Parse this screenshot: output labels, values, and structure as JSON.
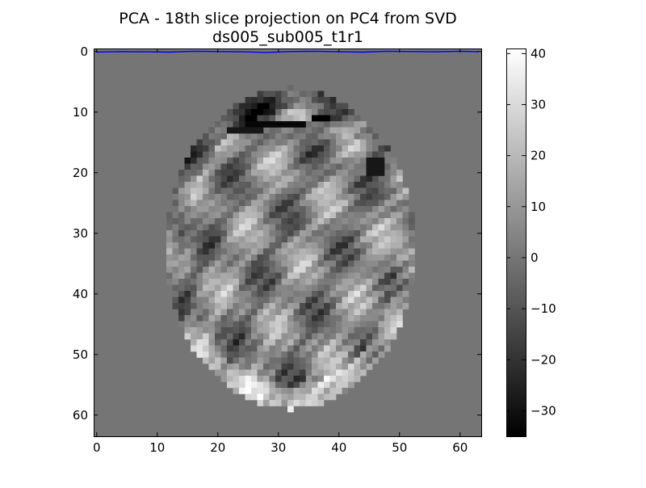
{
  "chart_data": {
    "type": "heatmap",
    "title_lines": [
      "PCA - 18th slice projection on PC4 from SVD",
      "ds005_sub005_t1r1"
    ],
    "colormap": "gray",
    "background_value": 0,
    "grid": false,
    "x": {
      "ticks": [
        0,
        10,
        20,
        30,
        40,
        50,
        60
      ],
      "lim": [
        -0.5,
        63.5
      ]
    },
    "y": {
      "ticks": [
        0,
        10,
        20,
        30,
        40,
        50,
        60
      ],
      "lim": [
        63.5,
        -0.5
      ]
    },
    "colorbar": {
      "ticks": [
        40,
        30,
        20,
        10,
        0,
        -10,
        -20,
        -30
      ],
      "vmin": -35,
      "vmax": 41
    },
    "series": [
      {
        "type": "line",
        "color": "#0000ff",
        "x": [
          0,
          4,
          8,
          12,
          16,
          20,
          24,
          28,
          32,
          36,
          40,
          44,
          48,
          52,
          56,
          60,
          63
        ],
        "y": [
          0.1,
          0.0,
          0.05,
          0.1,
          -0.05,
          0.0,
          0.05,
          0.15,
          0.0,
          -0.05,
          0.05,
          0.1,
          -0.05,
          0.0,
          0.05,
          -0.05,
          0.05
        ]
      }
    ],
    "brain_region": {
      "center": [
        32,
        32.5
      ],
      "radii": [
        26.5,
        20.5
      ],
      "value_range": [
        -35,
        41
      ]
    },
    "annotations": [
      {
        "type": "patch",
        "x": [
          25,
          34
        ],
        "y": 12,
        "value": -33
      },
      {
        "type": "patch",
        "x": [
          36,
          38
        ],
        "y": 11,
        "value": -35
      },
      {
        "type": "patch",
        "x": [
          45,
          47
        ],
        "y": [
          18,
          20
        ],
        "value": -28
      },
      {
        "type": "patch",
        "x": [
          22,
          27
        ],
        "y": 13,
        "value": -28
      },
      {
        "type": "patch",
        "x": 34,
        "y": 54,
        "value": -20
      }
    ]
  }
}
